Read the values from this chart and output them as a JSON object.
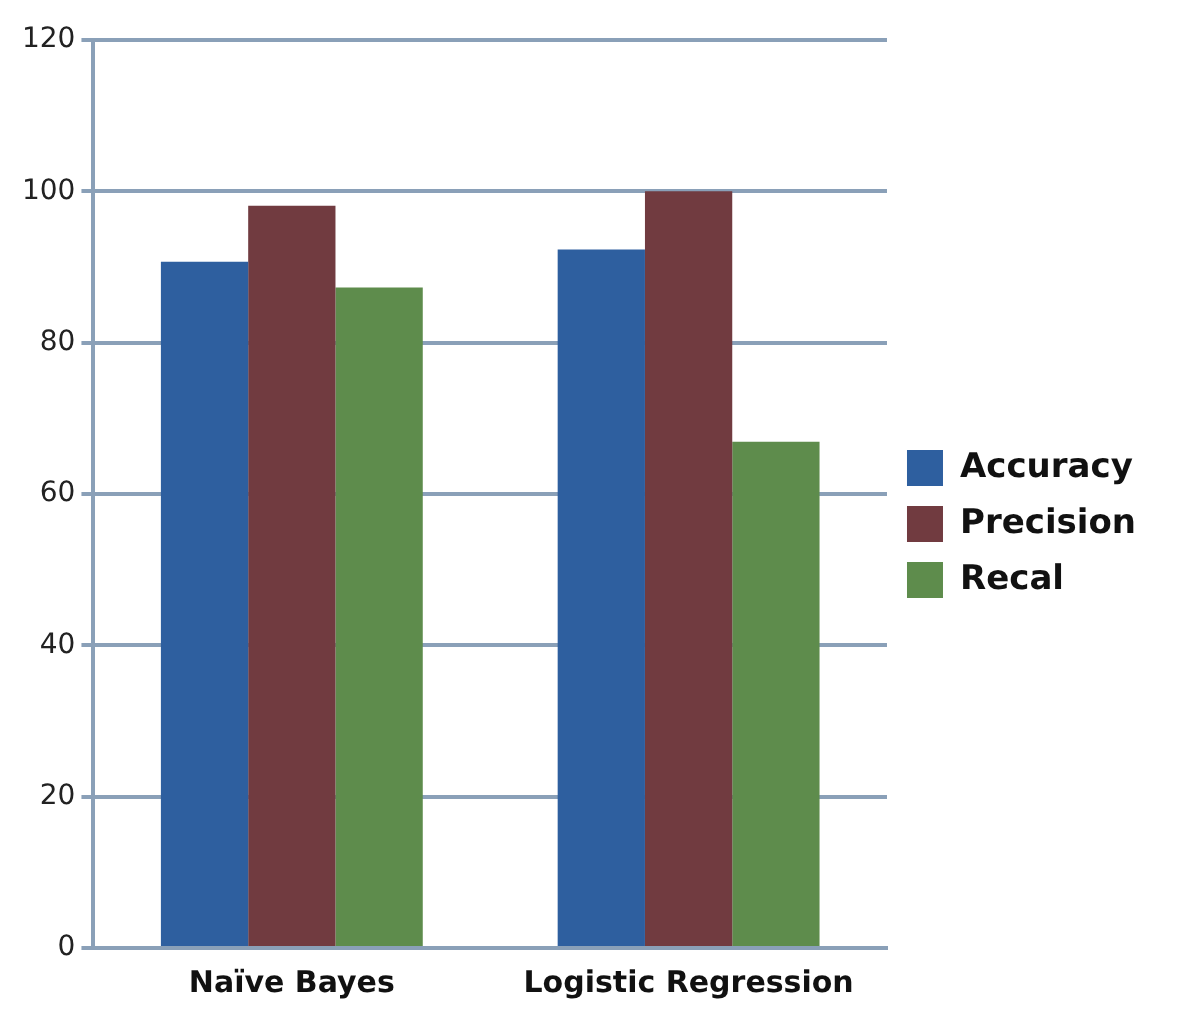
{
  "chart_data": {
    "type": "bar",
    "categories": [
      "Naïve Bayes",
      "Logistic Regression"
    ],
    "series": [
      {
        "name": "Accuracy",
        "color": "#2e5f9f",
        "values": [
          90.7,
          92.3
        ]
      },
      {
        "name": "Precision",
        "color": "#713b40",
        "values": [
          98.1,
          100
        ]
      },
      {
        "name": "Recal",
        "color": "#5e8c4c",
        "values": [
          87.3,
          66.9
        ]
      }
    ],
    "ylim": [
      0,
      120
    ],
    "yticks": [
      0,
      20,
      40,
      60,
      80,
      100,
      120
    ],
    "grid": "y",
    "legend": "right"
  }
}
